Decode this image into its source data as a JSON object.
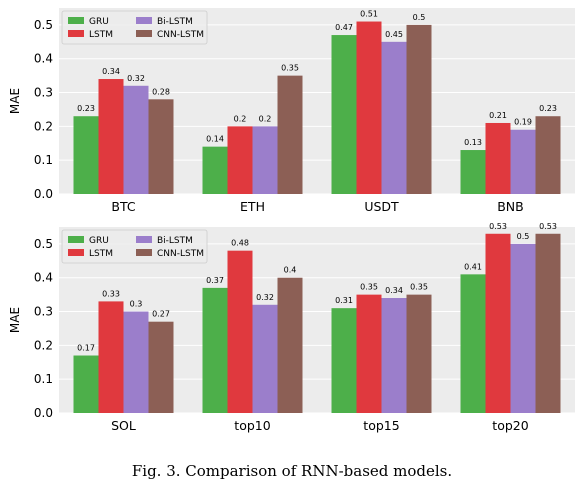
{
  "caption": "Fig. 3.  Comparison of RNN-based models.",
  "colors": {
    "GRU": "#4daf4a",
    "LSTM": "#e0393e",
    "Bi-LSTM": "#9b7ecb",
    "CNN-LSTM": "#8c5f55"
  },
  "chart_data": [
    {
      "type": "bar",
      "title": "",
      "xlabel": "",
      "ylabel": "MAE",
      "ylim": [
        0,
        0.55
      ],
      "yticks": [
        "0.0",
        "0.1",
        "0.2",
        "0.3",
        "0.4",
        "0.5"
      ],
      "grid": true,
      "legend_position": "top-left",
      "categories": [
        "BTC",
        "ETH",
        "USDT",
        "BNB"
      ],
      "series": [
        {
          "name": "GRU",
          "values": [
            0.23,
            0.14,
            0.47,
            0.13
          ],
          "labels": [
            "0.23",
            "0.14",
            "0.47",
            "0.13"
          ]
        },
        {
          "name": "LSTM",
          "values": [
            0.34,
            0.2,
            0.51,
            0.21
          ],
          "labels": [
            "0.34",
            "0.2",
            "0.51",
            "0.21"
          ]
        },
        {
          "name": "Bi-LSTM",
          "values": [
            0.32,
            0.2,
            0.45,
            0.19
          ],
          "labels": [
            "0.32",
            "0.2",
            "0.45",
            "0.19"
          ]
        },
        {
          "name": "CNN-LSTM",
          "values": [
            0.28,
            0.35,
            0.5,
            0.23
          ],
          "labels": [
            "0.28",
            "0.35",
            "0.5",
            "0.23"
          ]
        }
      ]
    },
    {
      "type": "bar",
      "title": "",
      "xlabel": "",
      "ylabel": "MAE",
      "ylim": [
        0,
        0.55
      ],
      "yticks": [
        "0.0",
        "0.1",
        "0.2",
        "0.3",
        "0.4",
        "0.5"
      ],
      "grid": true,
      "legend_position": "top-left",
      "categories": [
        "SOL",
        "top10",
        "top15",
        "top20"
      ],
      "series": [
        {
          "name": "GRU",
          "values": [
            0.17,
            0.37,
            0.31,
            0.41
          ],
          "labels": [
            "0.17",
            "0.37",
            "0.31",
            "0.41"
          ]
        },
        {
          "name": "LSTM",
          "values": [
            0.33,
            0.48,
            0.35,
            0.53
          ],
          "labels": [
            "0.33",
            "0.48",
            "0.35",
            "0.53"
          ]
        },
        {
          "name": "Bi-LSTM",
          "values": [
            0.3,
            0.32,
            0.34,
            0.5
          ],
          "labels": [
            "0.3",
            "0.32",
            "0.34",
            "0.5"
          ]
        },
        {
          "name": "CNN-LSTM",
          "values": [
            0.27,
            0.4,
            0.35,
            0.53
          ],
          "labels": [
            "0.27",
            "0.4",
            "0.35",
            "0.53"
          ]
        }
      ]
    }
  ]
}
